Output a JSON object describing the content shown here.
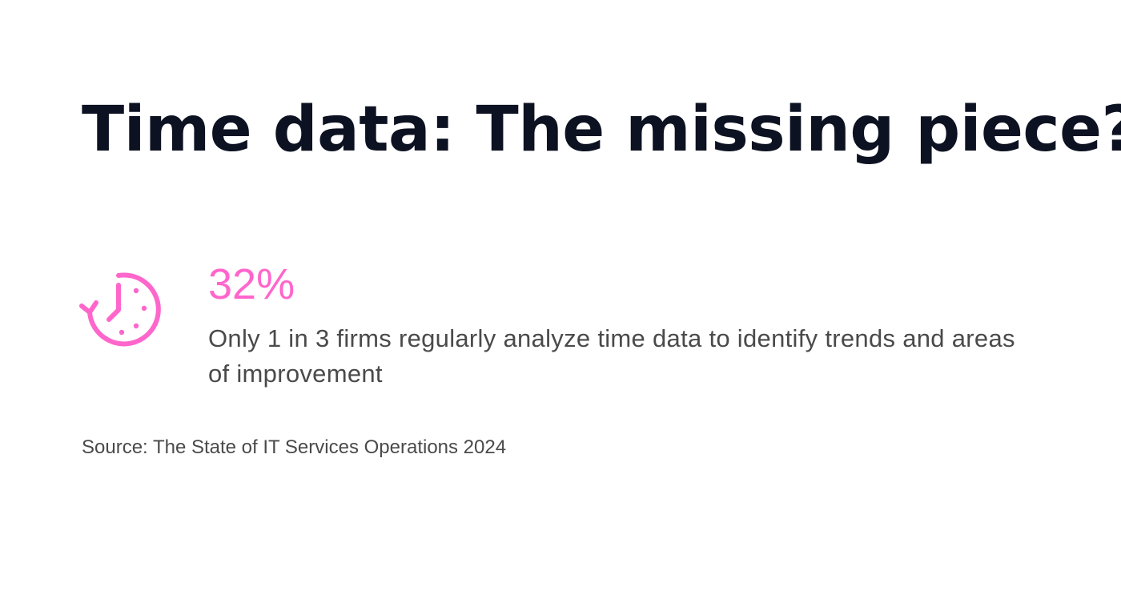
{
  "page": {
    "title": "Time data: The missing piece?"
  },
  "stat": {
    "icon": "clock-history-icon",
    "value": "32%",
    "description": "Only 1 in 3 firms regularly analyze time data to identify trends and areas of improvement"
  },
  "source": {
    "text": "Source: The State of IT Services Operations 2024"
  },
  "colors": {
    "accent": "#ff66cc",
    "title": "#0d1222",
    "body": "#4a4a4a",
    "background": "#ffffff"
  }
}
